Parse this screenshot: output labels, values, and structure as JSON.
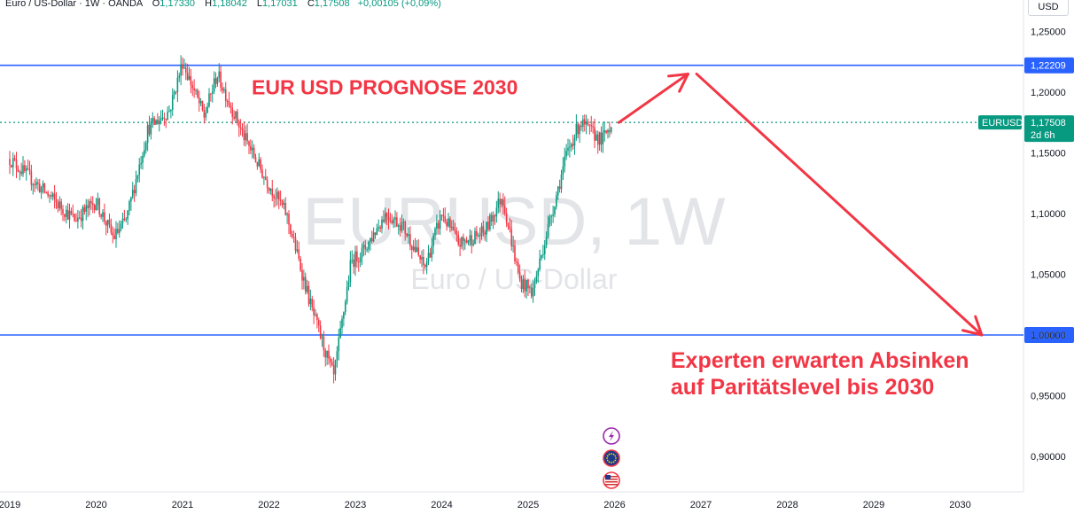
{
  "header": {
    "symbol_name": "Euro / US-Dollar",
    "interval": "1W",
    "source": "OANDA",
    "open_label": "O",
    "open": "1,17330",
    "high_label": "H",
    "high": "1,18042",
    "low_label": "L",
    "low": "1,17031",
    "close_label": "C",
    "close": "1,17508",
    "change": "+0,00105 (+0,09%)"
  },
  "currency_button": "USD",
  "watermark": {
    "main": "EURUSD, 1W",
    "sub": "Euro / US-Dollar"
  },
  "colors": {
    "up": "#089981",
    "down": "#f23645",
    "level_line": "#2962ff",
    "annotation": "#f23645",
    "last_price": "#089981",
    "axis_text": "#131722"
  },
  "chart_data": {
    "type": "candlestick",
    "x_ticks": [
      "2019",
      "2020",
      "2021",
      "2022",
      "2023",
      "2024",
      "2025",
      "2026",
      "2027",
      "2028",
      "2029",
      "2030"
    ],
    "y_ticks": [
      "1,25000",
      "1,20000",
      "1,15000",
      "1,10000",
      "1,05000",
      "1,00000",
      "0,95000",
      "0,90000"
    ],
    "ylim": [
      0.875,
      1.275
    ],
    "price_key_points": [
      [
        2019.0,
        1.145
      ],
      [
        2019.3,
        1.125
      ],
      [
        2019.75,
        1.095
      ],
      [
        2020.0,
        1.11
      ],
      [
        2020.2,
        1.08
      ],
      [
        2020.35,
        1.095
      ],
      [
        2020.6,
        1.17
      ],
      [
        2020.85,
        1.185
      ],
      [
        2021.0,
        1.225
      ],
      [
        2021.25,
        1.18
      ],
      [
        2021.4,
        1.215
      ],
      [
        2021.7,
        1.165
      ],
      [
        2021.95,
        1.13
      ],
      [
        2022.2,
        1.1
      ],
      [
        2022.5,
        1.02
      ],
      [
        2022.75,
        0.965
      ],
      [
        2022.95,
        1.06
      ],
      [
        2023.1,
        1.07
      ],
      [
        2023.35,
        1.1
      ],
      [
        2023.55,
        1.09
      ],
      [
        2023.8,
        1.055
      ],
      [
        2024.0,
        1.1
      ],
      [
        2024.2,
        1.075
      ],
      [
        2024.5,
        1.085
      ],
      [
        2024.7,
        1.115
      ],
      [
        2024.9,
        1.045
      ],
      [
        2025.05,
        1.035
      ],
      [
        2025.2,
        1.08
      ],
      [
        2025.45,
        1.15
      ],
      [
        2025.6,
        1.175
      ],
      [
        2025.85,
        1.16
      ],
      [
        2025.97,
        1.175
      ]
    ],
    "horizontal_lines": [
      {
        "price": 1.22209,
        "label": "1,22209"
      },
      {
        "price": 1.0,
        "label": "1,00000"
      }
    ],
    "last_price": {
      "price": 1.17508,
      "label": "1,17508",
      "symbol": "EURUSD",
      "countdown": "2d 6h"
    },
    "forecast_arrows": [
      {
        "from": [
          2026.05,
          1.175
        ],
        "to": [
          2026.85,
          1.215
        ]
      },
      {
        "from": [
          2026.95,
          1.215
        ],
        "to": [
          2030.25,
          1.0
        ]
      }
    ],
    "annotations": [
      {
        "text": "EUR USD PROGNOSE 2030",
        "x": 2021.8,
        "y": 1.198
      },
      {
        "text": "Experten erwarten Absinken",
        "x": 2026.65,
        "y": 0.973
      },
      {
        "text": "auf Paritätslevel bis 2030",
        "x": 2026.65,
        "y": 0.951
      }
    ],
    "event_icons": [
      {
        "icon": "lightning-icon"
      },
      {
        "icon": "eu-flag-icon"
      },
      {
        "icon": "us-flag-icon"
      }
    ]
  }
}
